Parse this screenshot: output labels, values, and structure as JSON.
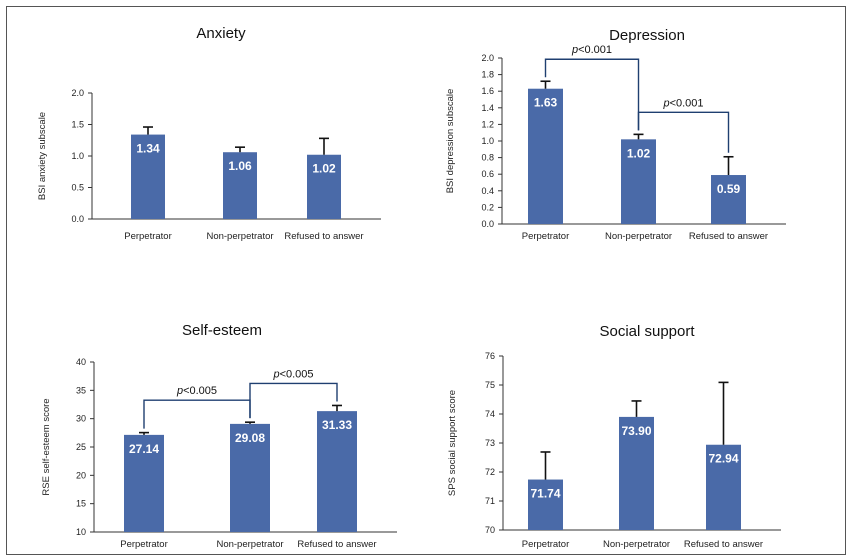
{
  "colors": {
    "bar": "#4a6aa8",
    "bracket": "#1f3f70",
    "axis": "#333333"
  },
  "chart_data": [
    {
      "type": "bar",
      "title": "Anxiety",
      "ylabel": "BSI anxiety subscale",
      "categories": [
        "Perpetrator",
        "Non-perpetrator",
        "Refused to answer"
      ],
      "values": [
        1.34,
        1.06,
        1.02
      ],
      "value_labels": [
        "1.34",
        "1.06",
        "1.02"
      ],
      "errors": [
        0.12,
        0.08,
        0.26
      ],
      "ylim": [
        0,
        2
      ],
      "yticks": [
        "0.0",
        "0.5",
        "1.0",
        "1.5",
        "2.0"
      ],
      "annotations": []
    },
    {
      "type": "bar",
      "title": "Depression",
      "ylabel": "BSI depression subscale",
      "categories": [
        "Perpetrator",
        "Non-perpetrator",
        "Refused to answer"
      ],
      "values": [
        1.63,
        1.02,
        0.59
      ],
      "value_labels": [
        "1.63",
        "1.02",
        "0.59"
      ],
      "errors": [
        0.09,
        0.06,
        0.22
      ],
      "ylim": [
        0,
        2
      ],
      "yticks": [
        "0.0",
        "0.2",
        "0.4",
        "0.6",
        "0.8",
        "1.0",
        "1.2",
        "1.4",
        "1.6",
        "1.8",
        "2.0"
      ],
      "annotations": [
        {
          "from": 0,
          "to": 1,
          "prefix": "p",
          "text": "<0.001"
        },
        {
          "from": 1,
          "to": 2,
          "prefix": "p",
          "text": "<0.001"
        }
      ]
    },
    {
      "type": "bar",
      "title": "Self-esteem",
      "ylabel": "RSE self-esteem score",
      "categories": [
        "Perpetrator",
        "Non-perpetrator",
        "Refused to answer"
      ],
      "values": [
        27.14,
        29.08,
        31.33
      ],
      "value_labels": [
        "27.14",
        "29.08",
        "31.33"
      ],
      "errors": [
        0.4,
        0.3,
        1.0
      ],
      "ylim": [
        10,
        40
      ],
      "yticks": [
        "10",
        "15",
        "20",
        "25",
        "30",
        "35",
        "40"
      ],
      "annotations": [
        {
          "from": 0,
          "to": 1,
          "prefix": "p",
          "text": "<0.005"
        },
        {
          "from": 1,
          "to": 2,
          "prefix": "p",
          "text": "<0.005"
        }
      ]
    },
    {
      "type": "bar",
      "title": "Social support",
      "ylabel": "SPS social support score",
      "categories": [
        "Perpetrator",
        "Non-perpetrator",
        "Refused to answer"
      ],
      "values": [
        71.74,
        73.9,
        72.94
      ],
      "value_labels": [
        "71.74",
        "73.90",
        "72.94"
      ],
      "errors": [
        0.95,
        0.55,
        2.15
      ],
      "ylim": [
        70,
        76
      ],
      "yticks": [
        "70",
        "71",
        "72",
        "73",
        "74",
        "75",
        "76"
      ],
      "annotations": []
    }
  ]
}
